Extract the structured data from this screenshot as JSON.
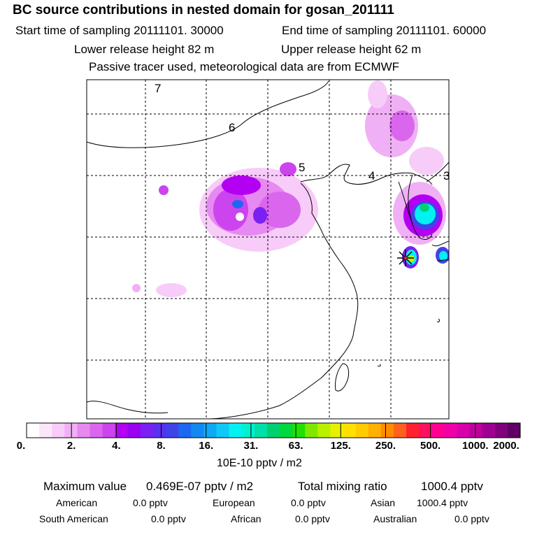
{
  "header": {
    "title": "BC  source contributions in nested domain for gosan_201111",
    "start_time": "Start time of sampling 20111101. 30000",
    "end_time": "End time of sampling 20111101. 60000",
    "lower_height": "Lower release height   82 m",
    "upper_height": "Upper release height   62 m",
    "tracer_note": "Passive tracer used, meteorological data are from ECMWF"
  },
  "map": {
    "trajectory_labels": [
      "7",
      "6",
      "5",
      "4",
      "3"
    ],
    "receptor_marker": "receptor-star-icon"
  },
  "colorbar": {
    "ticks": [
      "0.",
      "2.",
      "4.",
      "8.",
      "16.",
      "31.",
      "63.",
      "125.",
      "250.",
      "500.",
      "1000.",
      "2000."
    ],
    "units": "10E-10 pptv / m2",
    "colors": [
      "#ffffff",
      "#fbe6fc",
      "#f7ccf9",
      "#f0b0f5",
      "#e689f0",
      "#da66ee",
      "#cc44ee",
      "#b300f2",
      "#9a00f2",
      "#7a20f2",
      "#5a32ee",
      "#3f44e8",
      "#1d68f0",
      "#1488f2",
      "#10a8f5",
      "#10c8f6",
      "#00f2f2",
      "#00f0d0",
      "#00e0a8",
      "#00d070",
      "#00d840",
      "#20e000",
      "#80e800",
      "#b8f000",
      "#e8f000",
      "#ffe000",
      "#ffcc00",
      "#ffb000",
      "#ff8c00",
      "#ff6020",
      "#ff2030",
      "#ff1060",
      "#ff0090",
      "#f000a8",
      "#d800a8",
      "#c0009c",
      "#a00090",
      "#80007c",
      "#600064"
    ]
  },
  "summary": {
    "max_label": "Maximum value",
    "max_value": "0.469E-07 pptv / m2",
    "total_label": "Total mixing ratio",
    "total_value": "1000.4 pptv",
    "regions": [
      {
        "name": "American",
        "value": "0.0 pptv"
      },
      {
        "name": "European",
        "value": "0.0 pptv"
      },
      {
        "name": "Asian",
        "value": "1000.4 pptv"
      },
      {
        "name": "South American",
        "value": "0.0 pptv"
      },
      {
        "name": "African",
        "value": "0.0 pptv"
      },
      {
        "name": "Australian",
        "value": "0.0 pptv"
      }
    ]
  }
}
